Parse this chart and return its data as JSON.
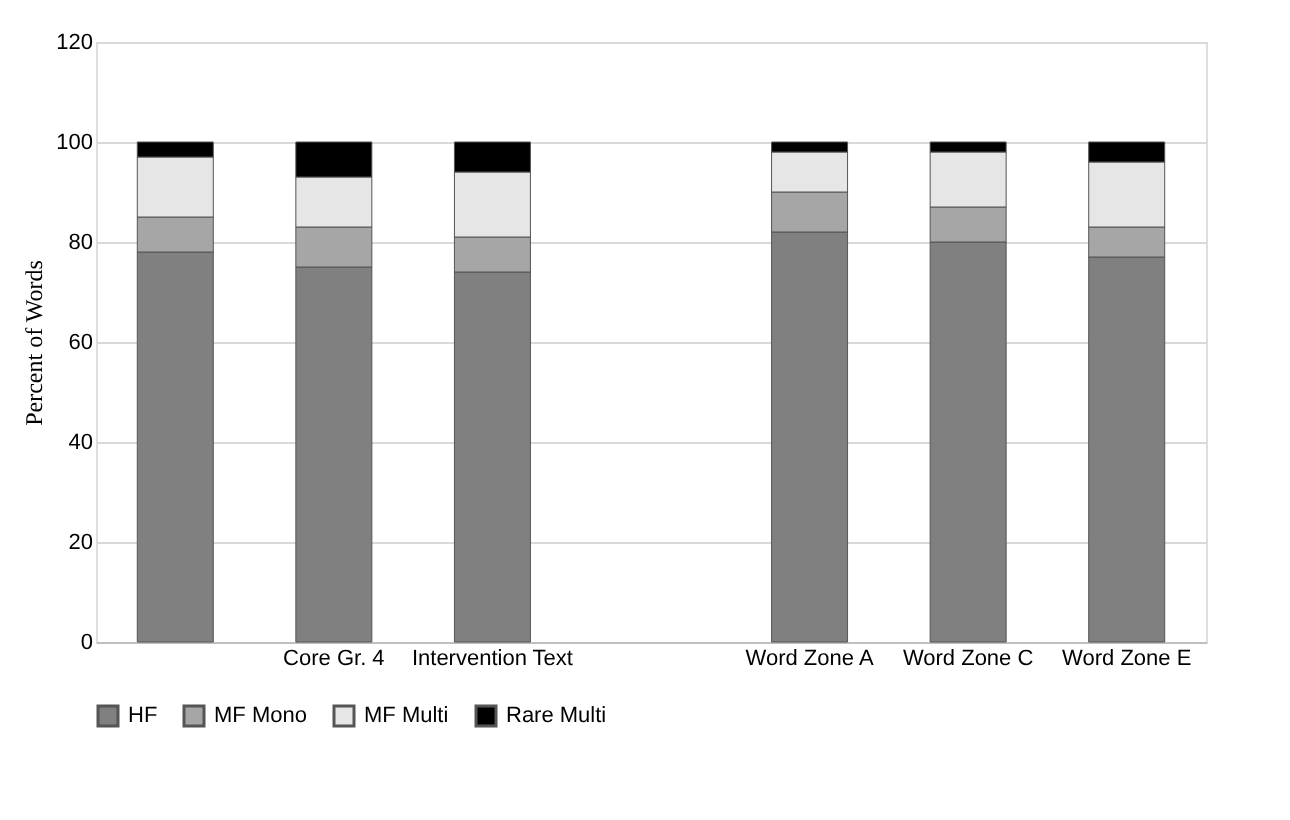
{
  "chart_data": {
    "type": "bar",
    "stacked": true,
    "ylabel": "Percent of Words",
    "categories": [
      null,
      "Core Gr. 4",
      "Intervention Text",
      null,
      "Word Zone A",
      "Word Zone C",
      "Word Zone E"
    ],
    "series": [
      {
        "name": "HF",
        "color": "#808080",
        "values": [
          78,
          75,
          74,
          null,
          82,
          80,
          77
        ]
      },
      {
        "name": "MF Mono",
        "color": "#a6a6a6",
        "values": [
          7,
          8,
          7,
          null,
          8,
          7,
          6
        ]
      },
      {
        "name": "MF Multi",
        "color": "#e6e6e6",
        "values": [
          12,
          10,
          13,
          null,
          8,
          11,
          13
        ]
      },
      {
        "name": "Rare Multi",
        "color": "#000000",
        "values": [
          3,
          7,
          6,
          null,
          2,
          2,
          4
        ]
      }
    ],
    "ylim": [
      0,
      120
    ],
    "yticks": [
      0,
      20,
      40,
      60,
      80,
      100,
      120
    ],
    "grid": "y",
    "legend": "bottom"
  }
}
